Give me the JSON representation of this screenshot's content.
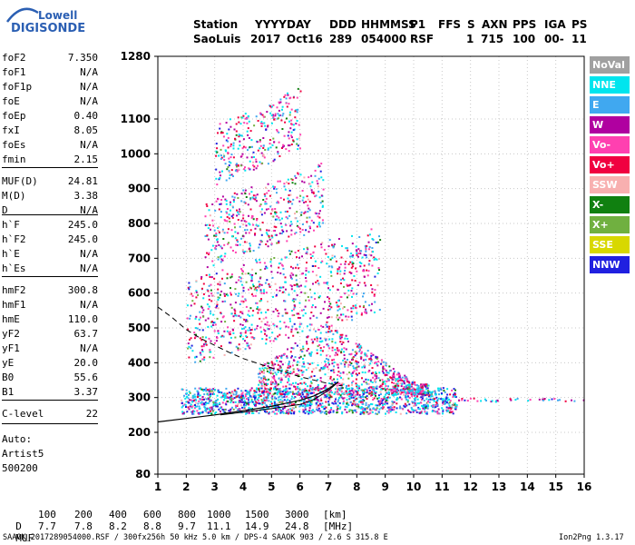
{
  "logo": {
    "line1": "Lowell",
    "line2": "DIGISONDE"
  },
  "header": {
    "row1": [
      "Station",
      "YYYY",
      "DAY",
      "DDD",
      "HHMMSS",
      "P1",
      "FFS",
      "S",
      "AXN",
      "PPS",
      "IGA",
      "PS"
    ],
    "row2": [
      "SaoLuis",
      "2017",
      "Oct16",
      "289",
      "054000",
      "RSF",
      "1",
      "715",
      "100",
      "00-",
      "11"
    ]
  },
  "params": [
    {
      "k": "foF2",
      "v": "7.350"
    },
    {
      "k": "foF1",
      "v": "N/A"
    },
    {
      "k": "foF1p",
      "v": "N/A"
    },
    {
      "k": "foE",
      "v": "N/A"
    },
    {
      "k": "foEp",
      "v": "0.40"
    },
    {
      "k": "fxI",
      "v": "8.05"
    },
    {
      "k": "foEs",
      "v": "N/A"
    },
    {
      "k": "fmin",
      "v": "2.15"
    },
    {
      "k": "MUF(D)",
      "v": "24.81"
    },
    {
      "k": "M(D)",
      "v": "3.38"
    },
    {
      "k": "D",
      "v": "N/A"
    },
    {
      "k": "h`F",
      "v": "245.0"
    },
    {
      "k": "h`F2",
      "v": "245.0"
    },
    {
      "k": "h`E",
      "v": "N/A"
    },
    {
      "k": "h`Es",
      "v": "N/A"
    },
    {
      "k": "hmF2",
      "v": "300.8"
    },
    {
      "k": "hmF1",
      "v": "N/A"
    },
    {
      "k": "hmE",
      "v": "110.0"
    },
    {
      "k": "yF2",
      "v": "63.7"
    },
    {
      "k": "yF1",
      "v": "N/A"
    },
    {
      "k": "yE",
      "v": "20.0"
    },
    {
      "k": "B0",
      "v": "55.6"
    },
    {
      "k": "B1",
      "v": "3.37"
    },
    {
      "k": "C-level",
      "v": "22"
    }
  ],
  "autoscale": {
    "line1": "Auto:",
    "line2": "Artist5",
    "line3": "500200"
  },
  "legend": [
    {
      "label": "NoVal",
      "color": "#a0a0a0"
    },
    {
      "label": "NNE",
      "color": "#00e5ee"
    },
    {
      "label": "E",
      "color": "#40a8f0"
    },
    {
      "label": "W",
      "color": "#b000a0"
    },
    {
      "label": "Vo-",
      "color": "#ff40b0"
    },
    {
      "label": "Vo+",
      "color": "#f00040"
    },
    {
      "label": "SSW",
      "color": "#f8b0b0"
    },
    {
      "label": "X-",
      "color": "#108010"
    },
    {
      "label": "X+",
      "color": "#70b040"
    },
    {
      "label": "SSE",
      "color": "#d8d800"
    },
    {
      "label": "NNW",
      "color": "#2020e0"
    }
  ],
  "footer": {
    "d_label": "D",
    "d_values": [
      "100",
      "200",
      "400",
      "600",
      "800",
      "1000",
      "1500",
      "3000",
      "[km]"
    ],
    "muf_label": "MUF",
    "muf_values": [
      "7.7",
      "7.8",
      "8.2",
      "8.8",
      "9.7",
      "11.1",
      "14.9",
      "24.8",
      "[MHz]"
    ],
    "info": "SAAOK_2017289054000.RSF / 300fx256h 50 kHz 5.0 km / DPS-4 SAAOK 903 / 2.6 S 315.8 E",
    "version": "Ion2Png 1.3.17"
  },
  "chart_data": {
    "type": "scatter",
    "title": "",
    "xlabel": "",
    "ylabel": "",
    "xlim": [
      1,
      16
    ],
    "ylim": [
      80,
      1280
    ],
    "x_ticks": [
      1,
      2,
      3,
      4,
      5,
      6,
      7,
      8,
      9,
      10,
      11,
      12,
      13,
      14,
      15,
      16
    ],
    "y_ticks": [
      80,
      200,
      300,
      400,
      500,
      600,
      700,
      800,
      900,
      1000,
      1100,
      1280
    ],
    "grid": "dotted",
    "echo_clusters": [
      {
        "name": "F2 main",
        "x": [
          1.8,
          11.5
        ],
        "y": [
          255,
          330
        ]
      },
      {
        "name": "F2 spread",
        "x": [
          4.5,
          10.5
        ],
        "y": [
          310,
          520
        ]
      },
      {
        "name": "2-hop",
        "x": [
          2.0,
          8.8
        ],
        "y": [
          470,
          720
        ]
      },
      {
        "name": "3-hop",
        "x": [
          2.6,
          6.8
        ],
        "y": [
          730,
          920
        ]
      },
      {
        "name": "4-hop",
        "x": [
          3.0,
          6.0
        ],
        "y": [
          960,
          1140
        ]
      },
      {
        "name": "extension",
        "x": [
          11.5,
          16
        ],
        "y": [
          290,
          300
        ]
      }
    ],
    "virtual_height_trace": {
      "x": [
        1.0,
        2,
        3,
        4,
        5,
        6,
        6.5,
        7,
        7.35
      ],
      "y": [
        230,
        240,
        250,
        262,
        275,
        292,
        305,
        325,
        345
      ]
    },
    "second_trace": {
      "x": [
        3.2,
        4,
        5,
        6,
        6.5,
        7.0,
        7.35
      ],
      "y": [
        250,
        258,
        268,
        280,
        295,
        320,
        345
      ]
    },
    "profile_curve_dashed": {
      "x": [
        1.0,
        1.5,
        2,
        2.5,
        3,
        3.5,
        4,
        5,
        6,
        7,
        7.5
      ],
      "y": [
        560,
        530,
        495,
        470,
        450,
        430,
        412,
        385,
        360,
        340,
        333
      ]
    }
  }
}
